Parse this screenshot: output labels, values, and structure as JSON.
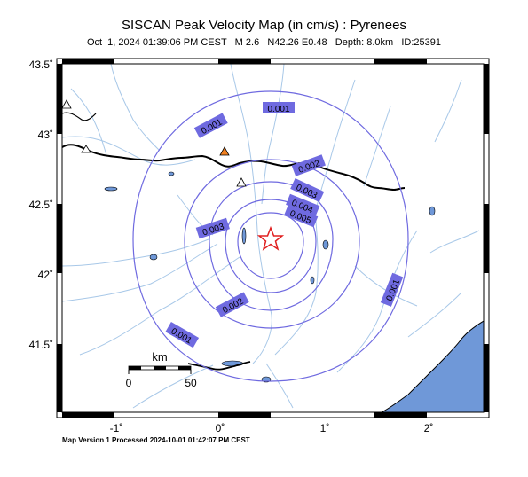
{
  "header": {
    "title": "SISCAN Peak Velocity Map (in cm/s) : Pyrenees",
    "subtitle": "Oct  1, 2024 01:39:06 PM CEST   M 2.6   N42.26 E0.48   Depth: 8.0km   ID:25391"
  },
  "footer": {
    "text": "Map Version 1 Processed 2024-10-01 01:42:07 PM CEST"
  },
  "axes": {
    "lat_ticks": [
      "43.5˚",
      "43˚",
      "42.5˚",
      "42˚",
      "41.5˚"
    ],
    "lon_ticks": [
      "-1˚",
      "0˚",
      "1˚",
      "2˚"
    ]
  },
  "scale_bar": {
    "unit": "km",
    "start": "0",
    "end": "50"
  },
  "contours": {
    "labels": [
      "0.001",
      "0.001",
      "0.001",
      "0.001",
      "0.002",
      "0.002",
      "0.003",
      "0.003",
      "0.004",
      "0.005"
    ]
  },
  "colors": {
    "contour": "#6f6ae0",
    "label_bg": "#6f6ae0",
    "sea": "#6f98d8",
    "river": "#a8c8e8",
    "border": "#000000",
    "epicenter": "#e02020",
    "station_active": "#f08020"
  },
  "markers": {
    "epicenter": "star-icon",
    "stations": [
      "triangle-icon",
      "triangle-icon",
      "triangle-icon",
      "triangle-icon"
    ]
  }
}
